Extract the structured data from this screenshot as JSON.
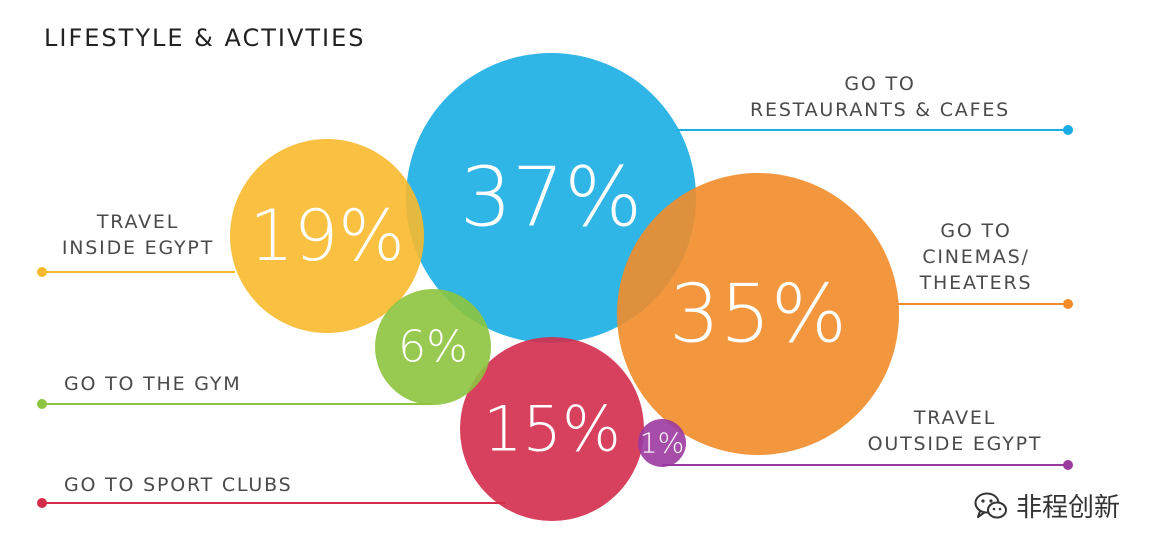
{
  "chart_data": {
    "type": "bubble",
    "title": "LIFESTYLE & ACTIVTIES",
    "series": [
      {
        "key": "restaurants",
        "label_lines": [
          "GO TO",
          "RESTAURANTS & CAFES"
        ],
        "value": 37,
        "display": "37%",
        "color": "#1AADE4"
      },
      {
        "key": "cinemas",
        "label_lines": [
          "GO TO",
          "CINEMAS/",
          "THEATERS"
        ],
        "value": 35,
        "display": "35%",
        "color": "#F28C2A"
      },
      {
        "key": "travel_inside",
        "label_lines": [
          "TRAVEL",
          "INSIDE EGYPT"
        ],
        "value": 19,
        "display": "19%",
        "color": "#F8B92C"
      },
      {
        "key": "sport_clubs",
        "label_lines": [
          "GO TO SPORT CLUBS"
        ],
        "value": 15,
        "display": "15%",
        "color": "#D42C4B"
      },
      {
        "key": "gym",
        "label_lines": [
          "GO TO THE GYM"
        ],
        "value": 6,
        "display": "6%",
        "color": "#8DC43F"
      },
      {
        "key": "travel_outside",
        "label_lines": [
          "TRAVEL",
          "OUTSIDE EGYPT"
        ],
        "value": 1,
        "display": "1%",
        "color": "#9B3A9E"
      }
    ]
  },
  "watermark": {
    "text": "非程创新",
    "icon": "wechat-icon"
  }
}
